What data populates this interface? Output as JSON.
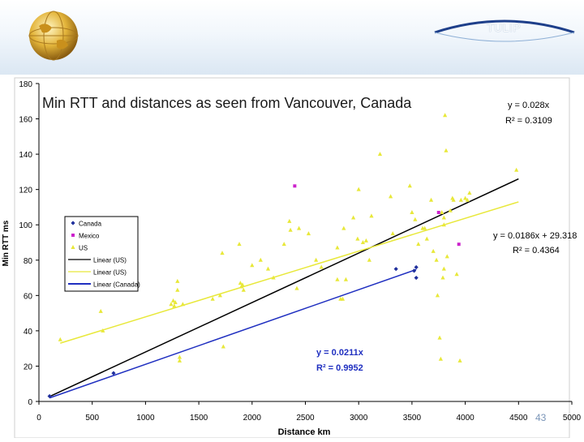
{
  "slide": {
    "brand": "TULIP",
    "page_number": "43"
  },
  "chart_data": {
    "type": "scatter",
    "title": "Min RTT and distances as seen from Vancouver, Canada",
    "xlabel": "Distance km",
    "ylabel": "Min RTT ms",
    "xlim": [
      0,
      5000
    ],
    "ylim": [
      0,
      180
    ],
    "x_ticks": [
      "0",
      "500",
      "1000",
      "1500",
      "2000",
      "2500",
      "3000",
      "3500",
      "4000",
      "4500",
      "5000"
    ],
    "y_ticks": [
      "0",
      "20",
      "40",
      "60",
      "80",
      "100",
      "120",
      "140",
      "160",
      "180"
    ],
    "grid": false,
    "legend": {
      "placement": "left",
      "entries": [
        "Canada",
        "Mexico",
        "US",
        "Linear (US)",
        "Linear (US)",
        "Linear (Canada)"
      ]
    },
    "series": [
      {
        "name": "Canada",
        "marker": "diamond",
        "color": "#1f2f9c",
        "points": [
          [
            100,
            3
          ],
          [
            700,
            16
          ],
          [
            3350,
            75
          ],
          [
            3520,
            74
          ],
          [
            3540,
            76
          ],
          [
            3540,
            70
          ]
        ]
      },
      {
        "name": "Mexico",
        "marker": "square",
        "color": "#cc22cc",
        "points": [
          [
            2400,
            122
          ],
          [
            3750,
            107
          ],
          [
            3940,
            89
          ]
        ]
      },
      {
        "name": "US",
        "marker": "triangle",
        "color": "#e8e83a",
        "points": [
          [
            200,
            35
          ],
          [
            580,
            51
          ],
          [
            600,
            40
          ],
          [
            1240,
            55
          ],
          [
            1260,
            57
          ],
          [
            1270,
            54
          ],
          [
            1280,
            56
          ],
          [
            1300,
            68
          ],
          [
            1300,
            63
          ],
          [
            1320,
            25
          ],
          [
            1320,
            23
          ],
          [
            1350,
            55
          ],
          [
            1630,
            58
          ],
          [
            1700,
            60
          ],
          [
            1720,
            84
          ],
          [
            1730,
            31
          ],
          [
            1880,
            89
          ],
          [
            1890,
            67
          ],
          [
            1900,
            65
          ],
          [
            1910,
            66
          ],
          [
            1920,
            63
          ],
          [
            2000,
            77
          ],
          [
            2080,
            80
          ],
          [
            2150,
            75
          ],
          [
            2200,
            70
          ],
          [
            2300,
            89
          ],
          [
            2350,
            102
          ],
          [
            2360,
            97
          ],
          [
            2420,
            64
          ],
          [
            2440,
            98
          ],
          [
            2530,
            95
          ],
          [
            2600,
            80
          ],
          [
            2650,
            76
          ],
          [
            2800,
            69
          ],
          [
            2800,
            87
          ],
          [
            2830,
            58
          ],
          [
            2850,
            58
          ],
          [
            2860,
            98
          ],
          [
            2880,
            69
          ],
          [
            2950,
            104
          ],
          [
            2990,
            92
          ],
          [
            3000,
            120
          ],
          [
            3040,
            90
          ],
          [
            3070,
            91
          ],
          [
            3100,
            80
          ],
          [
            3120,
            105
          ],
          [
            3200,
            140
          ],
          [
            3300,
            116
          ],
          [
            3320,
            95
          ],
          [
            3480,
            122
          ],
          [
            3500,
            107
          ],
          [
            3530,
            103
          ],
          [
            3560,
            89
          ],
          [
            3600,
            98
          ],
          [
            3620,
            98
          ],
          [
            3640,
            92
          ],
          [
            3680,
            114
          ],
          [
            3700,
            85
          ],
          [
            3730,
            80
          ],
          [
            3740,
            60
          ],
          [
            3760,
            36
          ],
          [
            3770,
            24
          ],
          [
            3780,
            107
          ],
          [
            3790,
            70
          ],
          [
            3800,
            75
          ],
          [
            3800,
            100
          ],
          [
            3800,
            104
          ],
          [
            3810,
            162
          ],
          [
            3820,
            142
          ],
          [
            3830,
            82
          ],
          [
            3860,
            108
          ],
          [
            3880,
            115
          ],
          [
            3890,
            114
          ],
          [
            3920,
            72
          ],
          [
            3950,
            23
          ],
          [
            3960,
            114
          ],
          [
            4000,
            115
          ],
          [
            4020,
            114
          ],
          [
            4040,
            118
          ],
          [
            4480,
            131
          ]
        ]
      }
    ],
    "trendlines": [
      {
        "name": "Linear (US)",
        "color": "#000000",
        "x": [
          100,
          4500
        ],
        "y": [
          2.8,
          126
        ],
        "equation": "y = 0.028x",
        "r2": "R² = 0.3109"
      },
      {
        "name": "Linear (US)",
        "color": "#e8e83a",
        "x": [
          200,
          4500
        ],
        "y": [
          33,
          113
        ],
        "equation": "y = 0.0186x + 29.318",
        "r2": "R² = 0.4364"
      },
      {
        "name": "Linear (Canada)",
        "color": "#1f2fc0",
        "x": [
          100,
          3540
        ],
        "y": [
          2,
          74.7
        ],
        "equation": "y = 0.0211x",
        "r2": "R² = 0.9952"
      }
    ]
  }
}
